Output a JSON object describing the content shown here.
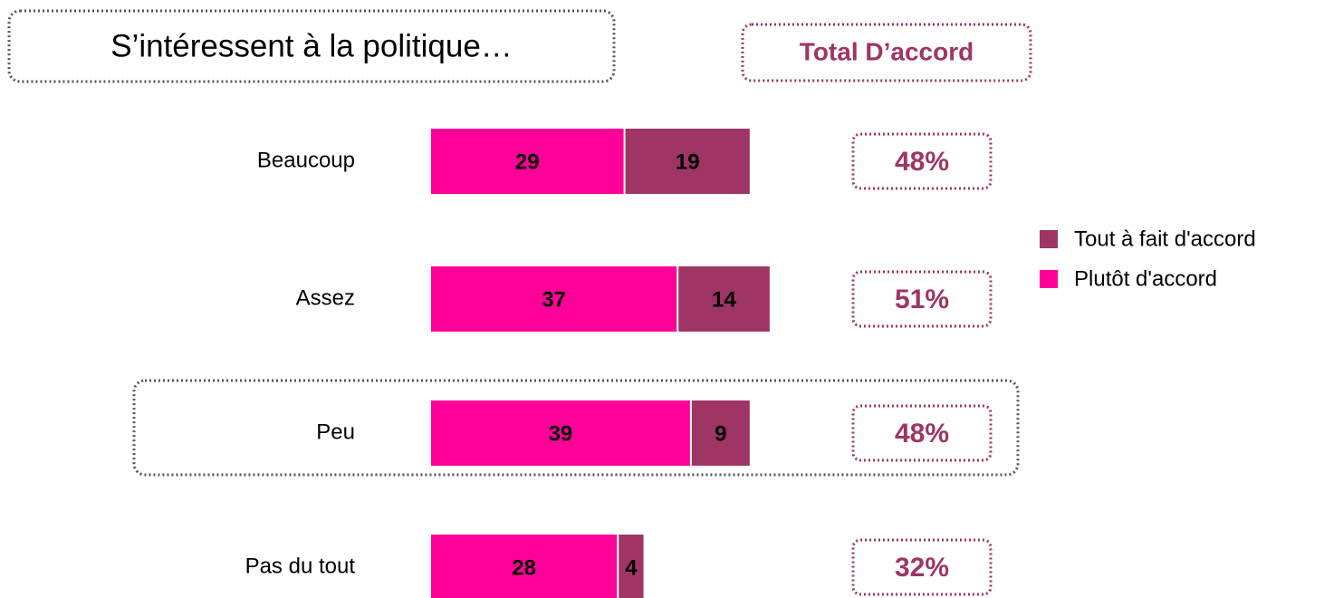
{
  "chart_data": {
    "type": "stacked-bar-horizontal",
    "title": "S’intéressent à la politique…",
    "total_header": "Total D’accord",
    "categories": [
      "Beaucoup",
      "Assez",
      "Peu",
      "Pas du tout"
    ],
    "series": [
      {
        "name": "Plutôt d'accord",
        "color": "#ff0099",
        "values": [
          29,
          37,
          39,
          28
        ]
      },
      {
        "name": "Tout à fait d'accord",
        "color": "#9e3565",
        "values": [
          19,
          14,
          9,
          4
        ]
      }
    ],
    "totals": {
      "values": [
        48,
        51,
        48,
        32
      ],
      "value_labels": [
        "48%",
        "51%",
        "48%",
        "32%"
      ],
      "color": "#9e3565"
    }
  }
}
